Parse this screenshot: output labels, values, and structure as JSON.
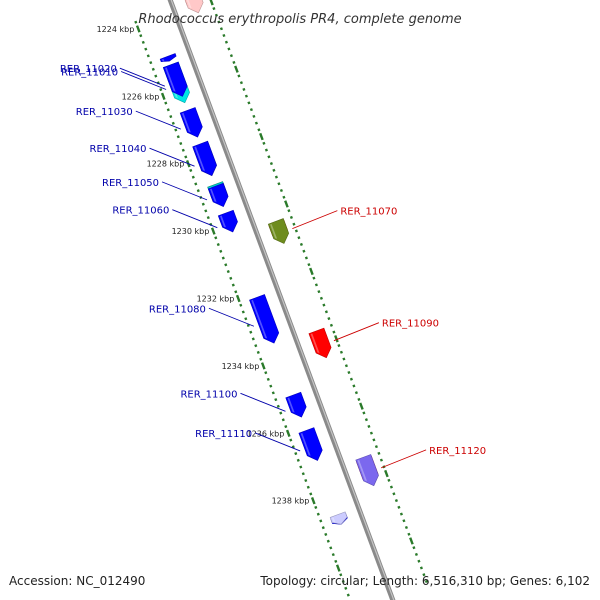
{
  "title": "Rhodococcus erythropolis PR4, complete genome",
  "footer": {
    "accession": "Accession: NC_012490",
    "topology": "Topology: circular; Length: 6,516,310 bp; Genes: 6,102"
  },
  "colors": {
    "backbone": "#8a8a8a",
    "tick": "#2a7a2a",
    "forward_label": "#cc0000",
    "reverse_label": "#0000aa"
  },
  "kbp_ticks": [
    {
      "kbp": 1224,
      "label": "1224 kbp"
    },
    {
      "kbp": 1226,
      "label": "1226 kbp"
    },
    {
      "kbp": 1228,
      "label": "1228 kbp"
    },
    {
      "kbp": 1230,
      "label": "1230 kbp"
    },
    {
      "kbp": 1232,
      "label": "1232 kbp"
    },
    {
      "kbp": 1234,
      "label": "1234 kbp"
    },
    {
      "kbp": 1236,
      "label": "1236 kbp"
    },
    {
      "kbp": 1238,
      "label": "1238 kbp"
    }
  ],
  "genes": [
    {
      "locus": "",
      "strand": "+",
      "start_kbp": 1223.6,
      "end_kbp": 1224.1,
      "color": "#ff3030"
    },
    {
      "locus": "",
      "strand": "+",
      "start_kbp": 1223.6,
      "end_kbp": 1224.2,
      "color": "#ffc8c8"
    },
    {
      "locus": "",
      "strand": "-",
      "start_kbp": 1225.0,
      "end_kbp": 1225.15,
      "color": "#0000ff"
    },
    {
      "locus": "RER_11010",
      "strand": "-",
      "start_kbp": 1225.25,
      "end_kbp": 1226.45,
      "color": "#00e5e5"
    },
    {
      "locus": "RER_11020",
      "strand": "-",
      "start_kbp": 1225.25,
      "end_kbp": 1226.25,
      "color": "#0000ff"
    },
    {
      "locus": "RER_11030",
      "strand": "-",
      "start_kbp": 1226.6,
      "end_kbp": 1227.45,
      "color": "#0000ff"
    },
    {
      "locus": "RER_11040",
      "strand": "-",
      "start_kbp": 1227.65,
      "end_kbp": 1228.6,
      "color": "#c0c0c0"
    },
    {
      "locus": "",
      "strand": "-",
      "start_kbp": 1227.6,
      "end_kbp": 1228.6,
      "color": "#0000ff"
    },
    {
      "locus": "RER_11050",
      "strand": "-",
      "start_kbp": 1228.8,
      "end_kbp": 1229.45,
      "color": "#ff8c00"
    },
    {
      "locus": "",
      "strand": "-",
      "start_kbp": 1228.8,
      "end_kbp": 1229.4,
      "color": "#00cccc"
    },
    {
      "locus": "",
      "strand": "-",
      "start_kbp": 1228.85,
      "end_kbp": 1229.5,
      "color": "#0000ff"
    },
    {
      "locus": "RER_11060",
      "strand": "-",
      "start_kbp": 1229.65,
      "end_kbp": 1230.25,
      "color": "#0000ff"
    },
    {
      "locus": "",
      "strand": "+",
      "start_kbp": 1230.4,
      "end_kbp": 1230.95,
      "color": "#ff0000"
    },
    {
      "locus": "RER_11070",
      "strand": "+",
      "start_kbp": 1230.35,
      "end_kbp": 1231.05,
      "color": "#6e8c1e"
    },
    {
      "locus": "RER_11080",
      "strand": "-",
      "start_kbp": 1232.15,
      "end_kbp": 1233.6,
      "color": "#0000ff"
    },
    {
      "locus": "RER_11090",
      "strand": "+",
      "start_kbp": 1233.6,
      "end_kbp": 1234.45,
      "color": "#ff0000"
    },
    {
      "locus": "RER_11100",
      "strand": "-",
      "start_kbp": 1235.05,
      "end_kbp": 1235.75,
      "color": "#0000ff"
    },
    {
      "locus": "RER_11110",
      "strand": "-",
      "start_kbp": 1236.1,
      "end_kbp": 1237.05,
      "color": "#0000ff"
    },
    {
      "locus": "",
      "strand": "+",
      "start_kbp": 1237.4,
      "end_kbp": 1238.2,
      "color": "#ff0000"
    },
    {
      "locus": "RER_11120",
      "strand": "+",
      "start_kbp": 1237.35,
      "end_kbp": 1238.25,
      "color": "#7b68ee"
    },
    {
      "locus": "",
      "strand": "-",
      "start_kbp": 1238.65,
      "end_kbp": 1238.9,
      "color": "#0000ff"
    },
    {
      "locus": "",
      "strand": "-",
      "start_kbp": 1238.6,
      "end_kbp": 1238.9,
      "color": "#ccccff"
    }
  ]
}
